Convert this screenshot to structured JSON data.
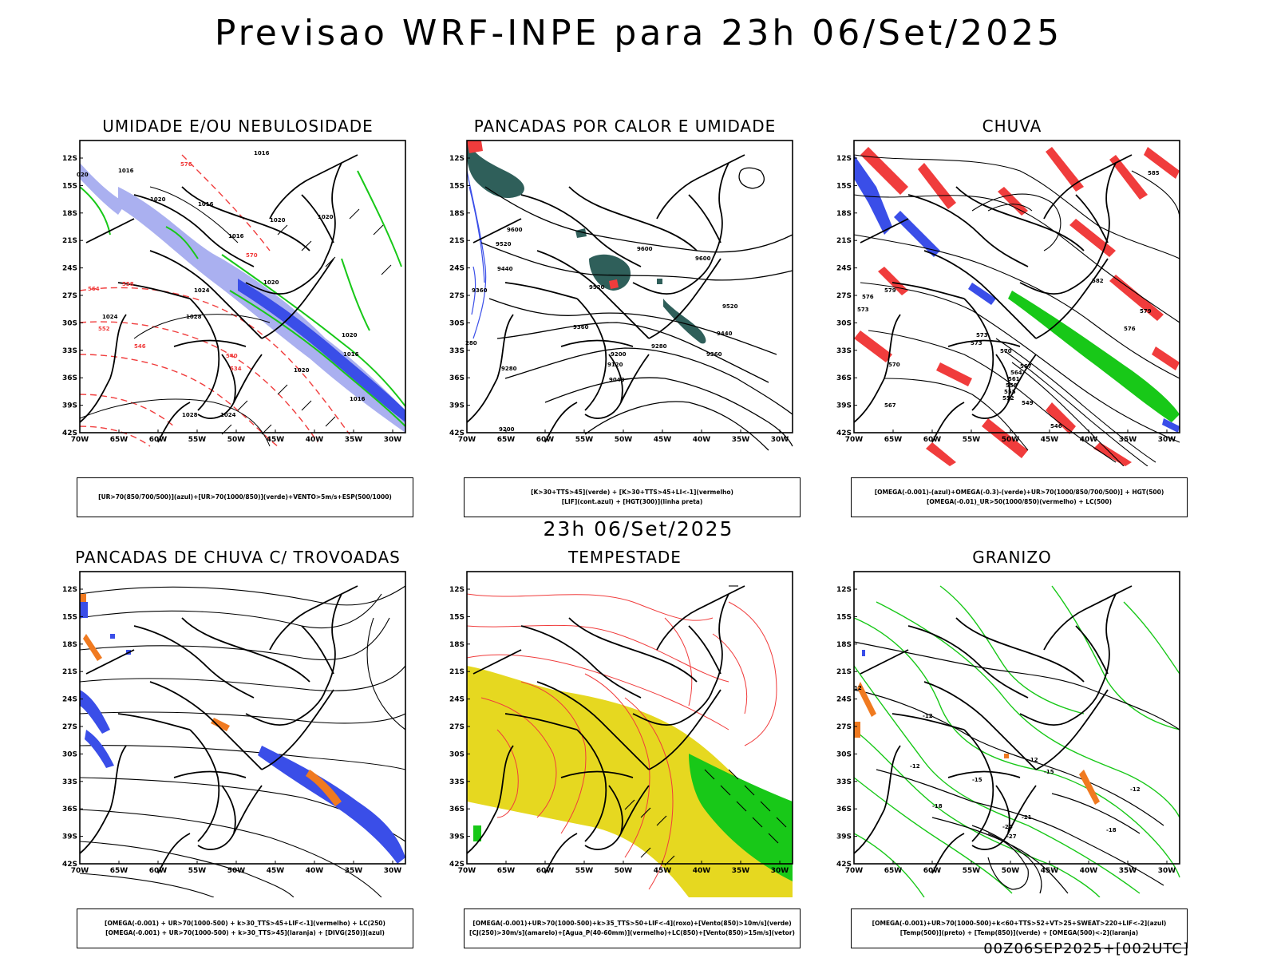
{
  "header": {
    "title": "Previsao WRF-INPE  para 23h 06/Set/2025"
  },
  "middle_date": "23h 06/Set/2025",
  "footer": "00Z06SEP2025+[002UTC]",
  "axes": {
    "lat_labels": [
      "12S",
      "15S",
      "18S",
      "21S",
      "24S",
      "27S",
      "30S",
      "33S",
      "36S",
      "39S",
      "42S"
    ],
    "lon_labels": [
      "70W",
      "65W",
      "60W",
      "55W",
      "50W",
      "45W",
      "40W",
      "35W",
      "30W"
    ]
  },
  "colors": {
    "blue": "#3a4ee8",
    "lightblue": "#aab0f0",
    "green": "#18c818",
    "red": "#f03c3c",
    "orange": "#f07a20",
    "yellow": "#e6d820",
    "teal": "#2f5f5a"
  },
  "panels": [
    {
      "title": "UMIDADE E/OU NEBULOSIDADE",
      "legend": [
        "[UR>70(850/700/500)](azul)+[UR>70(1000/850)](verde)+VENTO>5m/s+ESP(500/1000)"
      ],
      "contour_labels": [
        "1016",
        "1016",
        "1020",
        "1016",
        "1020",
        "1020",
        "1016",
        "1020",
        "1024",
        "1028",
        "1028",
        "1024",
        "1020",
        "1016",
        "1020",
        "1016",
        "020",
        "1024",
        "570",
        "564",
        "558",
        "552",
        "546",
        "540",
        "534",
        "576"
      ]
    },
    {
      "title": "PANCADAS POR CALOR E UMIDADE",
      "legend": [
        "[K>30+TTS>45](verde) + [K>30+TTS>45+LI<-1](vermelho)",
        "[LIF](cont.azul) + [HGT(300)](linha preta)"
      ],
      "contour_labels": [
        "9600",
        "9600",
        "9520",
        "9440",
        "9360",
        "9280",
        "9200",
        "9120",
        "9040",
        "9600",
        "9520",
        "9440",
        "9360",
        "9280",
        "9520",
        "9200",
        "280",
        "9360"
      ]
    },
    {
      "title": "CHUVA",
      "legend": [
        "[OMEGA(-0.001)-(azul)+OMEGA(-0.3)-(verde)+UR>70(1000/850/700/500)] + HGT(500)",
        "[OMEGA(-0.01)_UR>50(1000/850)(vermelho) + LC(500)"
      ],
      "contour_labels": [
        "585",
        "582",
        "579",
        "576",
        "573",
        "570",
        "567",
        "564",
        "561",
        "558",
        "555",
        "552",
        "549",
        "546",
        "579",
        "576",
        "573",
        "570",
        "567",
        "573"
      ]
    },
    {
      "title": "PANCADAS DE CHUVA C/ TROVOADAS",
      "legend": [
        "[OMEGA(-0.001) + UR>70(1000-500) + k>30_TTS>45+LIF<-1](vermelho) + LC(250)",
        "[OMEGA(-0.001) + UR>70(1000-500) + k>30_TTS>45](laranja) + [DIVG(250)](azul)"
      ]
    },
    {
      "title": "TEMPESTADE",
      "legend": [
        "[OMEGA(-0.001)+UR>70(1000-500)+k>35_TTS>50+LIF<-4](roxo)+[Vento(850)>10m/s](verde)",
        "[CJ(250)>30m/s](amarelo)+[Agua_P(40-60mm)](vermelho)+LC(850)+[Vento(850)>15m/s](vetor)"
      ]
    },
    {
      "title": "GRANIZO",
      "legend": [
        "[OMEGA(-0.001)+UR>70(1000-500)+k<60+TTS>52+VT>25+SWEAT>220+LIF<-2](azul)",
        "[Temp(500)](preto) + [Temp(850)](verde) + [OMEGA(500)<-2](laranja)"
      ],
      "contour_labels": [
        "-12",
        "-12",
        "-15",
        "-18",
        "-21",
        "-24",
        "-27",
        "-18",
        "-15",
        "-12",
        "12",
        "-12"
      ]
    }
  ]
}
